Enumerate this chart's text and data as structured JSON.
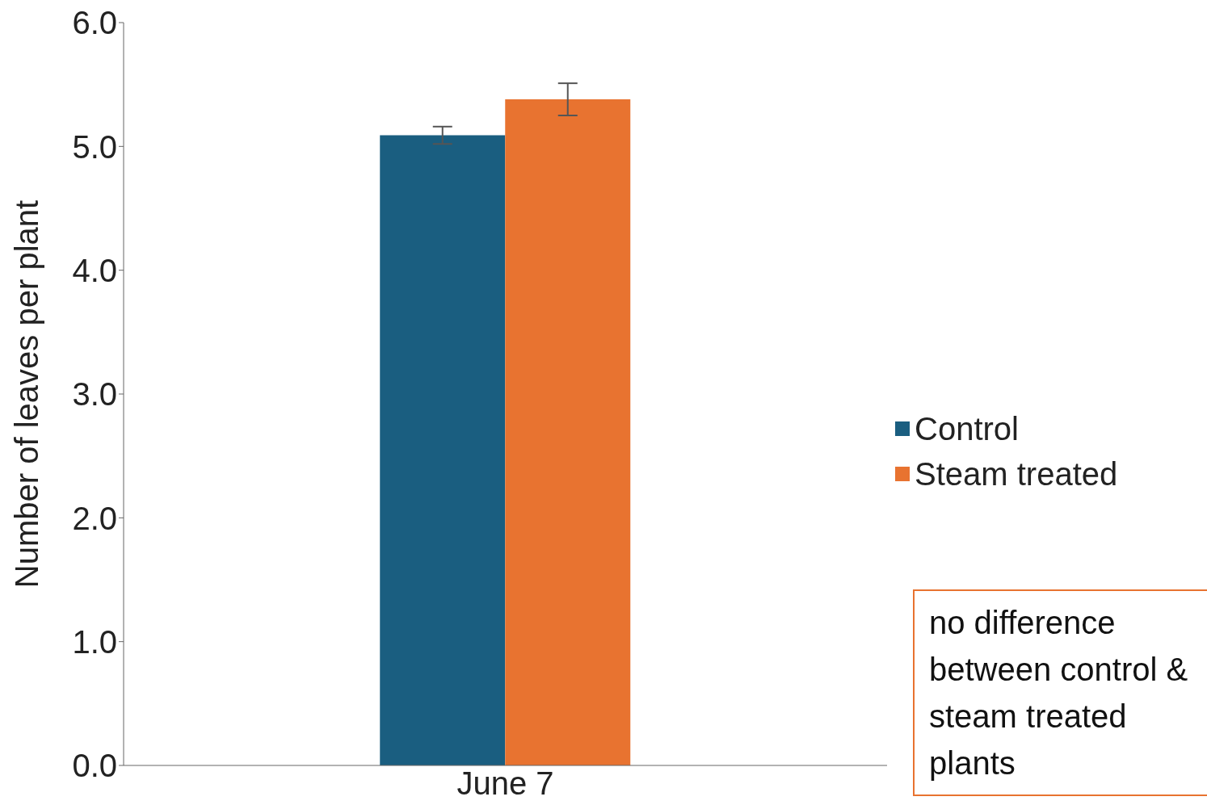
{
  "chart_data": {
    "type": "bar",
    "ylabel": "Number of leaves per plant",
    "categories": [
      "June 7"
    ],
    "series": [
      {
        "name": "Control",
        "color": "#1a5e80",
        "values": [
          5.09
        ],
        "errors": [
          0.07
        ]
      },
      {
        "name": "Steam treated",
        "color": "#e87330",
        "values": [
          5.38
        ],
        "errors": [
          0.13
        ]
      }
    ],
    "ylim": [
      0,
      6
    ],
    "yticks": [
      {
        "value": 0,
        "label": "0.0"
      },
      {
        "value": 1,
        "label": "1.0"
      },
      {
        "value": 2,
        "label": "2.0"
      },
      {
        "value": 3,
        "label": "3.0"
      },
      {
        "value": 4,
        "label": "4.0"
      },
      {
        "value": 5,
        "label": "5.0"
      },
      {
        "value": 6,
        "label": "6.0"
      }
    ],
    "grid": false,
    "legend": "right",
    "annotations": [
      "no difference between control & steam treated plants"
    ]
  }
}
